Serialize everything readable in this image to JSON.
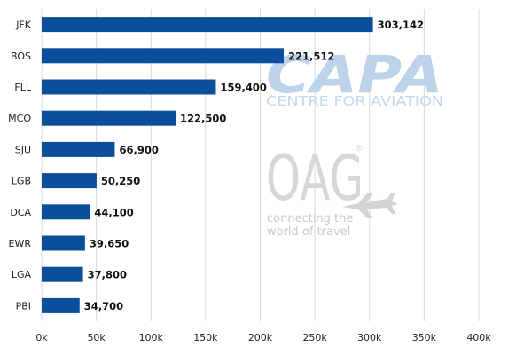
{
  "chart_data": {
    "type": "bar",
    "orientation": "horizontal",
    "categories": [
      "JFK",
      "BOS",
      "FLL",
      "MCO",
      "SJU",
      "LGB",
      "DCA",
      "EWR",
      "LGA",
      "PBI"
    ],
    "values": [
      303142,
      221512,
      159400,
      122500,
      66900,
      50250,
      44100,
      39650,
      37800,
      34700
    ],
    "data_labels": [
      "303,142",
      "221,512",
      "159,400",
      "122,500",
      "66,900",
      "50,250",
      "44,100",
      "39,650",
      "37,800",
      "34,700"
    ],
    "xlim": [
      0,
      400000
    ],
    "xticks": [
      0,
      50000,
      100000,
      150000,
      200000,
      250000,
      300000,
      350000,
      400000
    ],
    "xtick_labels": [
      "0k",
      "50k",
      "100k",
      "150k",
      "200k",
      "250k",
      "300k",
      "350k",
      "400k"
    ],
    "grid": true,
    "bar_color": "#0b4f9c",
    "grid_color": "#d9d9d9"
  },
  "watermarks": {
    "capa_title": "CAPA",
    "capa_subtitle": "CENTRE FOR AVIATION",
    "oag_title": "OAG",
    "oag_registered": "®",
    "oag_tagline_1": "connecting the",
    "oag_tagline_2": "world of travel"
  }
}
